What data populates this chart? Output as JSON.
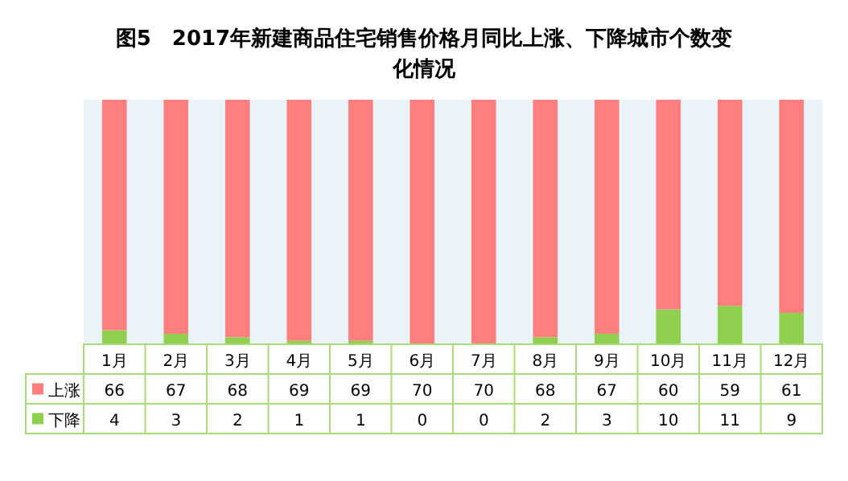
{
  "chart_data": {
    "type": "bar",
    "stacked": true,
    "title": "图5　2017年新建商品住宅销售价格月同比上涨、下降城市个数变化情况",
    "categories": [
      "1月",
      "2月",
      "3月",
      "4月",
      "5月",
      "6月",
      "7月",
      "8月",
      "9月",
      "10月",
      "11月",
      "12月"
    ],
    "series": [
      {
        "name": "下降",
        "color": "#8fd14f",
        "values": [
          4,
          3,
          2,
          1,
          1,
          0,
          0,
          2,
          3,
          10,
          11,
          9
        ]
      },
      {
        "name": "上涨",
        "color": "#ff7f7f",
        "values": [
          66,
          67,
          68,
          69,
          69,
          70,
          70,
          68,
          67,
          60,
          59,
          61
        ]
      }
    ],
    "data_labels": true,
    "legend": "bottom left",
    "grid": false
  }
}
